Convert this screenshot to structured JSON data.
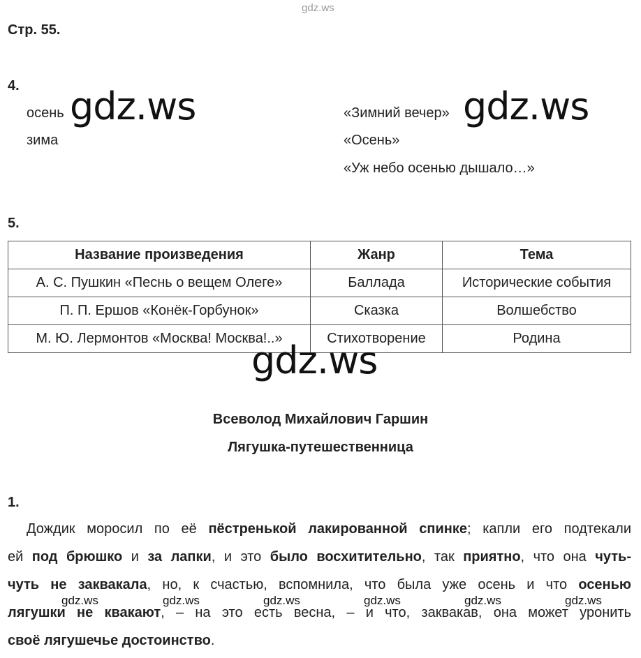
{
  "watermark": "gdz.ws",
  "page_label": "Стр. 55.",
  "task4": {
    "number": "4.",
    "left": [
      "осень",
      "зима"
    ],
    "right": [
      "«Зимний вечер»",
      "«Осень»",
      "«Уж небо осенью дышало…»"
    ]
  },
  "task5": {
    "number": "5.",
    "headers": [
      "Название произведения",
      "Жанр",
      "Тема"
    ],
    "rows": [
      [
        "А. С. Пушкин «Песнь о вещем Олеге»",
        "Баллада",
        "Исторические события"
      ],
      [
        "П. П. Ершов «Конёк-Горбунок»",
        "Сказка",
        "Волшебство"
      ],
      [
        "М. Ю. Лермонтов «Москва! Москва!..»",
        "Стихотворение",
        "Родина"
      ]
    ]
  },
  "section": {
    "author": "Всеволод Михайлович Гаршин",
    "title": "Лягушка-путешественница"
  },
  "task1": {
    "number": "1.",
    "lines": [
      [
        {
          "t": "Дождик моросил по её ",
          "b": false
        },
        {
          "t": "пёстренькой лакированной спинке",
          "b": true
        },
        {
          "t": "; капли его подтекали",
          "b": false
        }
      ],
      [
        {
          "t": "ей ",
          "b": false
        },
        {
          "t": "под брюшко",
          "b": true
        },
        {
          "t": " и ",
          "b": false
        },
        {
          "t": "за лапки",
          "b": true
        },
        {
          "t": ", и это ",
          "b": false
        },
        {
          "t": "было восхитительно",
          "b": true
        },
        {
          "t": ", так ",
          "b": false
        },
        {
          "t": "приятно",
          "b": true
        },
        {
          "t": ", что она ",
          "b": false
        },
        {
          "t": "чуть-",
          "b": true
        }
      ],
      [
        {
          "t": "чуть не заквакала",
          "b": true
        },
        {
          "t": ", но, к счастью, вспомнила, что была уже осень и что ",
          "b": false
        },
        {
          "t": "осенью",
          "b": true
        }
      ],
      [
        {
          "t": "лягушки не квакают",
          "b": true
        },
        {
          "t": ", – на это есть весна, – и что, заквакав, она может уронить",
          "b": false
        }
      ],
      [
        {
          "t": "своё лягушечье достоинство",
          "b": true
        },
        {
          "t": ".",
          "b": false
        }
      ]
    ]
  }
}
